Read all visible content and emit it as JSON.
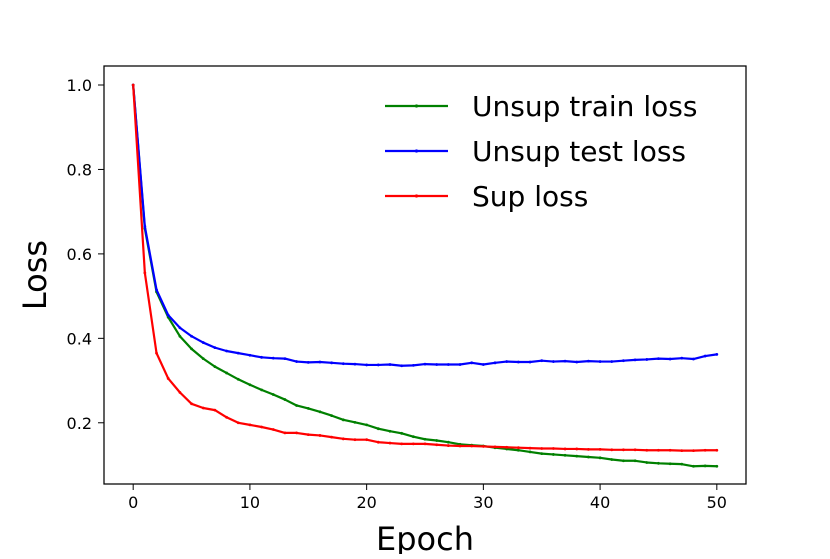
{
  "chart_data": {
    "type": "line",
    "title": "",
    "xlabel": "Epoch",
    "ylabel": "Loss",
    "xlim": [
      -2.5,
      52.5
    ],
    "ylim": [
      0.055,
      1.045
    ],
    "xticks": [
      0,
      10,
      20,
      30,
      40,
      50
    ],
    "yticks": [
      0.2,
      0.4,
      0.6,
      0.8,
      1.0
    ],
    "xtick_labels": [
      "0",
      "10",
      "20",
      "30",
      "40",
      "50"
    ],
    "ytick_labels": [
      "0.2",
      "0.4",
      "0.6",
      "0.8",
      "1.0"
    ],
    "grid": false,
    "legend_position": "top-right",
    "x": [
      0,
      1,
      2,
      3,
      4,
      5,
      6,
      7,
      8,
      9,
      10,
      11,
      12,
      13,
      14,
      15,
      16,
      17,
      18,
      19,
      20,
      21,
      22,
      23,
      24,
      25,
      26,
      27,
      28,
      29,
      30,
      31,
      32,
      33,
      34,
      35,
      36,
      37,
      38,
      39,
      40,
      41,
      42,
      43,
      44,
      45,
      46,
      47,
      48,
      49,
      50
    ],
    "series": [
      {
        "name": "Unsup train loss",
        "color": "#008000",
        "values": [
          1.0,
          0.66,
          0.51,
          0.45,
          0.405,
          0.375,
          0.352,
          0.333,
          0.318,
          0.303,
          0.29,
          0.278,
          0.267,
          0.255,
          0.241,
          0.234,
          0.226,
          0.217,
          0.207,
          0.201,
          0.195,
          0.186,
          0.18,
          0.175,
          0.167,
          0.161,
          0.158,
          0.154,
          0.149,
          0.147,
          0.145,
          0.141,
          0.138,
          0.135,
          0.131,
          0.127,
          0.125,
          0.123,
          0.121,
          0.119,
          0.117,
          0.113,
          0.11,
          0.11,
          0.106,
          0.104,
          0.103,
          0.102,
          0.097,
          0.098,
          0.097
        ]
      },
      {
        "name": "Unsup test loss",
        "color": "#0000ff",
        "values": [
          1.0,
          0.665,
          0.515,
          0.455,
          0.425,
          0.405,
          0.39,
          0.378,
          0.37,
          0.365,
          0.36,
          0.355,
          0.353,
          0.352,
          0.345,
          0.343,
          0.344,
          0.342,
          0.34,
          0.339,
          0.337,
          0.337,
          0.338,
          0.335,
          0.336,
          0.339,
          0.338,
          0.338,
          0.338,
          0.342,
          0.338,
          0.342,
          0.345,
          0.344,
          0.344,
          0.347,
          0.345,
          0.346,
          0.344,
          0.346,
          0.345,
          0.345,
          0.347,
          0.349,
          0.35,
          0.352,
          0.351,
          0.353,
          0.351,
          0.358,
          0.362
        ]
      },
      {
        "name": "Sup loss",
        "color": "#ff0000",
        "values": [
          1.0,
          0.555,
          0.365,
          0.305,
          0.272,
          0.245,
          0.235,
          0.23,
          0.213,
          0.2,
          0.195,
          0.19,
          0.184,
          0.176,
          0.176,
          0.172,
          0.17,
          0.166,
          0.162,
          0.16,
          0.16,
          0.154,
          0.152,
          0.15,
          0.15,
          0.15,
          0.148,
          0.146,
          0.145,
          0.145,
          0.144,
          0.143,
          0.142,
          0.141,
          0.14,
          0.139,
          0.139,
          0.138,
          0.138,
          0.137,
          0.137,
          0.136,
          0.136,
          0.136,
          0.135,
          0.135,
          0.135,
          0.134,
          0.134,
          0.135,
          0.135
        ]
      }
    ]
  }
}
